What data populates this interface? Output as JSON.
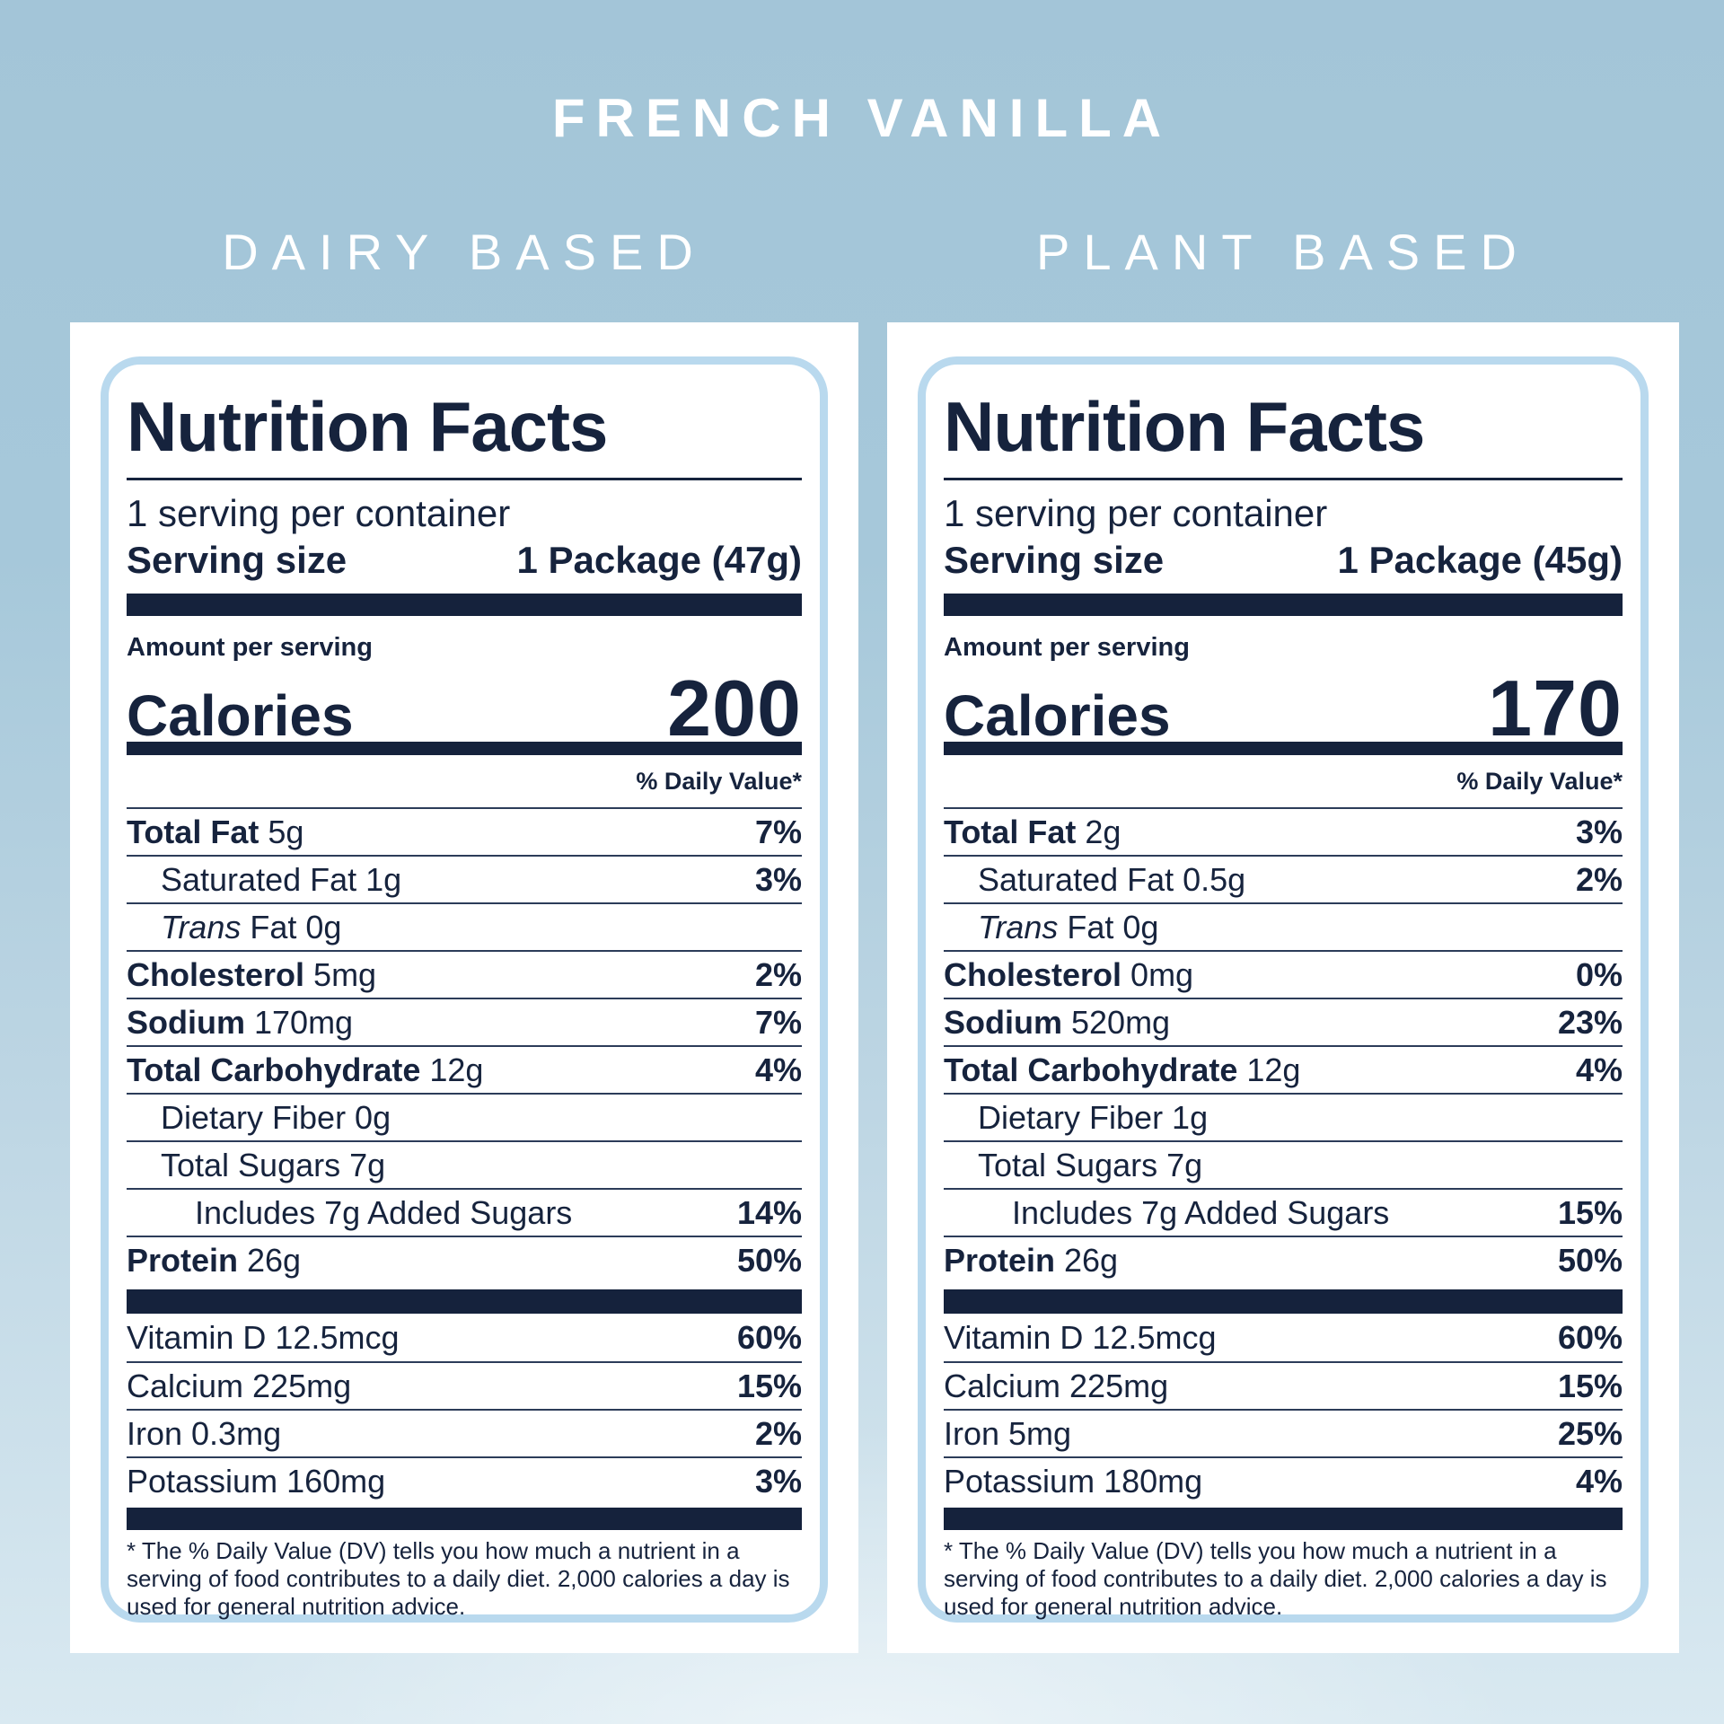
{
  "page": {
    "title": "FRENCH VANILLA"
  },
  "colors": {
    "navy_text": "#16233d",
    "divider_bar": "#15223c",
    "card_border_blue": "#b9d9ee",
    "card_background": "#ffffff",
    "background_top": "#a3c5d8",
    "background_bottom": "#d9e9f1",
    "heading_text": "#ffffff"
  },
  "labels": [
    {
      "heading": "DAIRY BASED",
      "title": "Nutrition Facts",
      "servings_per_container": "1 serving per container",
      "serving_size_label": "Serving size",
      "serving_size_value": "1 Package (47g)",
      "amount_per_serving": "Amount per serving",
      "calories_label": "Calories",
      "calories_value": "200",
      "daily_value_note": "% Daily Value*",
      "main_rows": [
        {
          "bold": "Total Fat",
          "rest": "5g",
          "dv": "7%",
          "indent": 0
        },
        {
          "rest": "Saturated Fat 1g",
          "dv": "3%",
          "indent": 1
        },
        {
          "italic": "Trans",
          "rest": "Fat 0g",
          "dv": "",
          "indent": 1
        },
        {
          "bold": "Cholesterol",
          "rest": "5mg",
          "dv": "2%",
          "indent": 0
        },
        {
          "bold": "Sodium",
          "rest": "170mg",
          "dv": "7%",
          "indent": 0
        },
        {
          "bold": "Total Carbohydrate",
          "rest": "12g",
          "dv": "4%",
          "indent": 0
        },
        {
          "rest": "Dietary Fiber 0g",
          "dv": "",
          "indent": 1
        },
        {
          "rest": "Total Sugars 7g",
          "dv": "",
          "indent": 1
        },
        {
          "rest": "Includes 7g Added Sugars",
          "dv": "14%",
          "indent": 2
        },
        {
          "bold": "Protein",
          "rest": "26g",
          "dv": "50%",
          "indent": 0
        }
      ],
      "vitamin_rows": [
        {
          "rest": "Vitamin D 12.5mcg",
          "dv": "60%",
          "indent": 0
        },
        {
          "rest": "Calcium 225mg",
          "dv": "15%",
          "indent": 0
        },
        {
          "rest": "Iron 0.3mg",
          "dv": "2%",
          "indent": 0
        },
        {
          "rest": "Potassium 160mg",
          "dv": "3%",
          "indent": 0
        }
      ],
      "footnote": "* The % Daily Value (DV) tells you how much a nutrient in a serving of food contributes to a daily diet. 2,000 calories a day is used for general nutrition advice."
    },
    {
      "heading": "PLANT BASED",
      "title": "Nutrition Facts",
      "servings_per_container": "1 serving per container",
      "serving_size_label": "Serving size",
      "serving_size_value": "1 Package (45g)",
      "amount_per_serving": "Amount per serving",
      "calories_label": "Calories",
      "calories_value": "170",
      "daily_value_note": "% Daily Value*",
      "main_rows": [
        {
          "bold": "Total Fat",
          "rest": "2g",
          "dv": "3%",
          "indent": 0
        },
        {
          "rest": "Saturated Fat 0.5g",
          "dv": "2%",
          "indent": 1
        },
        {
          "italic": "Trans",
          "rest": "Fat 0g",
          "dv": "",
          "indent": 1
        },
        {
          "bold": "Cholesterol",
          "rest": "0mg",
          "dv": "0%",
          "indent": 0
        },
        {
          "bold": "Sodium",
          "rest": "520mg",
          "dv": "23%",
          "indent": 0
        },
        {
          "bold": "Total Carbohydrate",
          "rest": "12g",
          "dv": "4%",
          "indent": 0
        },
        {
          "rest": "Dietary Fiber 1g",
          "dv": "",
          "indent": 1
        },
        {
          "rest": "Total Sugars 7g",
          "dv": "",
          "indent": 1
        },
        {
          "rest": "Includes 7g Added Sugars",
          "dv": "15%",
          "indent": 2
        },
        {
          "bold": "Protein",
          "rest": "26g",
          "dv": "50%",
          "indent": 0
        }
      ],
      "vitamin_rows": [
        {
          "rest": "Vitamin D 12.5mcg",
          "dv": "60%",
          "indent": 0
        },
        {
          "rest": "Calcium 225mg",
          "dv": "15%",
          "indent": 0
        },
        {
          "rest": "Iron 5mg",
          "dv": "25%",
          "indent": 0
        },
        {
          "rest": "Potassium 180mg",
          "dv": "4%",
          "indent": 0
        }
      ],
      "footnote": "* The % Daily Value (DV) tells you how much a nutrient in a serving of food contributes to a daily diet. 2,000 calories a day is used for general nutrition advice."
    }
  ]
}
